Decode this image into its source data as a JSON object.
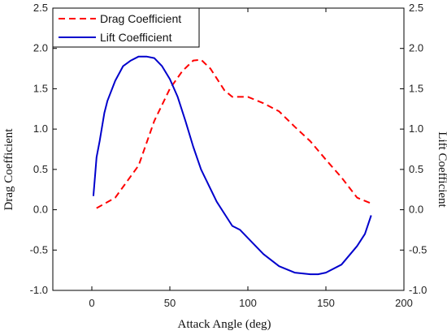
{
  "chart_data": {
    "type": "line",
    "title": "",
    "xlabel": "Attack Angle (deg)",
    "ylabel_left": "Drag Coefficient",
    "ylabel_right": "Lift Coefficient",
    "xlim": [
      -25,
      200
    ],
    "ylim": [
      -1.0,
      2.5
    ],
    "ylim_right": [
      -1.0,
      2.5
    ],
    "x_ticks": [
      "0",
      "50",
      "100",
      "150",
      "200"
    ],
    "y_ticks": [
      "-1.0",
      "-0.5",
      "0.0",
      "0.5",
      "1.0",
      "1.5",
      "2.0",
      "2.5"
    ],
    "y_ticks_right": [
      "-1.0",
      "-0.5",
      "0.0",
      "0.5",
      "1.0",
      "1.5",
      "2.0",
      "2.5"
    ],
    "grid": false,
    "legend_position": "top-left",
    "series": [
      {
        "name": "Drag Coefficient",
        "axis": "left",
        "color": "#ff0000",
        "style": "dashed",
        "x": [
          3,
          15,
          30,
          40,
          50,
          58,
          65,
          70,
          76,
          85,
          90,
          100,
          110,
          120,
          130,
          140,
          150,
          160,
          170,
          180
        ],
        "y": [
          0.02,
          0.15,
          0.55,
          1.1,
          1.5,
          1.72,
          1.85,
          1.86,
          1.75,
          1.48,
          1.4,
          1.4,
          1.32,
          1.22,
          1.03,
          0.85,
          0.62,
          0.4,
          0.15,
          0.07
        ]
      },
      {
        "name": "Lift Coefficient",
        "axis": "right",
        "color": "#0000cc",
        "style": "solid",
        "x": [
          1,
          2,
          3,
          5,
          8,
          10,
          15,
          20,
          25,
          30,
          35,
          40,
          45,
          50,
          55,
          60,
          65,
          70,
          80,
          90,
          95,
          100,
          110,
          120,
          130,
          140,
          145,
          150,
          160,
          170,
          175,
          179
        ],
        "y": [
          0.17,
          0.4,
          0.65,
          0.85,
          1.2,
          1.35,
          1.6,
          1.78,
          1.85,
          1.9,
          1.9,
          1.88,
          1.78,
          1.62,
          1.4,
          1.1,
          0.78,
          0.5,
          0.1,
          -0.2,
          -0.25,
          -0.35,
          -0.55,
          -0.7,
          -0.78,
          -0.8,
          -0.8,
          -0.78,
          -0.68,
          -0.45,
          -0.3,
          -0.07
        ]
      }
    ]
  }
}
